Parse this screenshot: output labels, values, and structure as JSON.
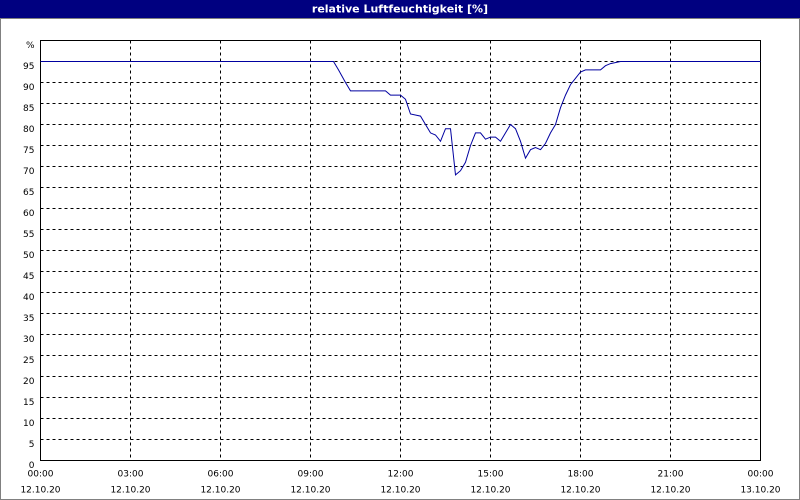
{
  "chart_data": {
    "type": "line",
    "title": "relative Luftfeuchtigkeit [%]",
    "x": [
      "12.10.20 00:00",
      "12.10.20 09:46",
      "12.10.20 09:56",
      "12.10.20 10:10",
      "12.10.20 10:20",
      "12.10.20 11:30",
      "12.10.20 11:40",
      "12.10.20 12:00",
      "12.10.20 12:10",
      "12.10.20 12:20",
      "12.10.20 12:40",
      "12.10.20 12:50",
      "12.10.20 13:00",
      "12.10.20 13:10",
      "12.10.20 13:20",
      "12.10.20 13:30",
      "12.10.20 13:40",
      "12.10.20 13:50",
      "12.10.20 14:00",
      "12.10.20 14:10",
      "12.10.20 14:20",
      "12.10.20 14:30",
      "12.10.20 14:40",
      "12.10.20 14:50",
      "12.10.20 15:00",
      "12.10.20 15:10",
      "12.10.20 15:20",
      "12.10.20 15:30",
      "12.10.20 15:40",
      "12.10.20 15:50",
      "12.10.20 16:00",
      "12.10.20 16:10",
      "12.10.20 16:20",
      "12.10.20 16:30",
      "12.10.20 16:40",
      "12.10.20 16:50",
      "12.10.20 17:00",
      "12.10.20 17:10",
      "12.10.20 17:20",
      "12.10.20 17:30",
      "12.10.20 17:40",
      "12.10.20 17:50",
      "12.10.20 18:00",
      "12.10.20 18:10",
      "12.10.20 18:30",
      "12.10.20 18:40",
      "12.10.20 18:50",
      "12.10.20 19:00",
      "12.10.20 19:20",
      "13.10.20 00:00"
    ],
    "series": [
      {
        "color": "#0000a0",
        "values": [
          95,
          95,
          93,
          90,
          88,
          88,
          87,
          87,
          86,
          82.5,
          82,
          80,
          78,
          77.5,
          76,
          79,
          79,
          68,
          69,
          71,
          75,
          78,
          78,
          76.5,
          77,
          77,
          76,
          78,
          80,
          79,
          76,
          72,
          74,
          74.5,
          74,
          75.5,
          78,
          80,
          84,
          87,
          89.5,
          91,
          92.5,
          93,
          93,
          93,
          94,
          94.5,
          95,
          95
        ]
      }
    ],
    "xlim": [
      "12.10.20 00:00",
      "13.10.20 00:00"
    ],
    "xticks": [
      {
        "value": "12.10.20 00:00",
        "label": [
          "00:00",
          "12.10.20"
        ]
      },
      {
        "value": "12.10.20 03:00",
        "label": [
          "03:00",
          "12.10.20"
        ]
      },
      {
        "value": "12.10.20 06:00",
        "label": [
          "06:00",
          "12.10.20"
        ]
      },
      {
        "value": "12.10.20 09:00",
        "label": [
          "09:00",
          "12.10.20"
        ]
      },
      {
        "value": "12.10.20 12:00",
        "label": [
          "12:00",
          "12.10.20"
        ]
      },
      {
        "value": "12.10.20 15:00",
        "label": [
          "15:00",
          "12.10.20"
        ]
      },
      {
        "value": "12.10.20 18:00",
        "label": [
          "18:00",
          "12.10.20"
        ]
      },
      {
        "value": "12.10.20 21:00",
        "label": [
          "21:00",
          "12.10.20"
        ]
      },
      {
        "value": "13.10.20 00:00",
        "label": [
          "00:00",
          "13.10.20"
        ]
      }
    ],
    "ylim": [
      0,
      100
    ],
    "yticks": [
      0,
      5,
      10,
      15,
      20,
      25,
      30,
      35,
      40,
      45,
      50,
      55,
      60,
      65,
      70,
      75,
      80,
      85,
      90,
      95,
      {
        "value": 100,
        "label": "%"
      }
    ],
    "grid": true
  }
}
